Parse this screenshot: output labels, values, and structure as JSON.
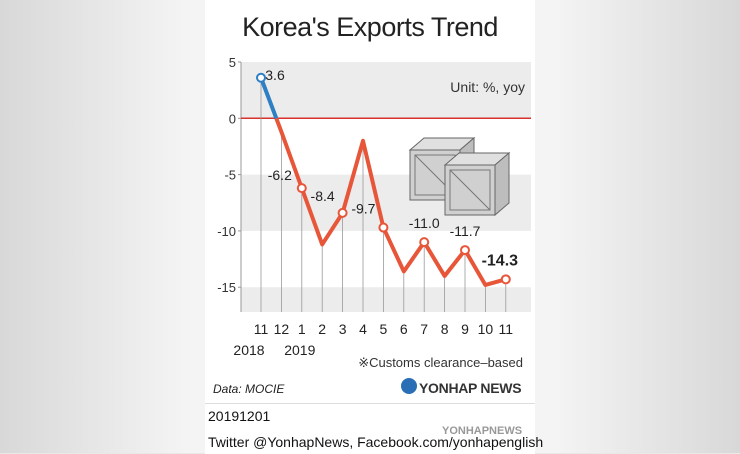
{
  "chart_data": {
    "type": "line",
    "title": "Korea's Exports Trend",
    "unit": "Unit: %, yoy",
    "note": "※Customs clearance–based",
    "categories": [
      "11",
      "12",
      "1",
      "2",
      "3",
      "4",
      "5",
      "6",
      "7",
      "8",
      "9",
      "10",
      "11"
    ],
    "year_labels": [
      {
        "label": "2018",
        "index": 0
      },
      {
        "label": "2019",
        "index": 2
      }
    ],
    "values": [
      3.6,
      -1.2,
      -6.2,
      -11.2,
      -8.4,
      -2.0,
      -9.7,
      -13.6,
      -11.0,
      -14.0,
      -11.7,
      -14.8,
      -14.3
    ],
    "labeled": [
      {
        "index": 0,
        "text": "3.6"
      },
      {
        "index": 2,
        "text": "-6.2"
      },
      {
        "index": 4,
        "text": "-8.4"
      },
      {
        "index": 6,
        "text": "-9.7"
      },
      {
        "index": 8,
        "text": "-11.0"
      },
      {
        "index": 10,
        "text": "-11.7"
      },
      {
        "index": 12,
        "text": "-14.3"
      }
    ],
    "yticks": [
      5,
      0,
      -5,
      -10,
      -15
    ],
    "ylim": [
      -17,
      5
    ],
    "colors": {
      "positive": "#2f7fc4",
      "negative": "#e8563a",
      "zero_line": "#d9312b"
    }
  },
  "source": "Data: MOCIE",
  "brand": "YONHAP NEWS",
  "footer": {
    "date": "20191201",
    "social": "Twitter @YonhapNews,  Facebook.com/yonhapenglish",
    "watermark": "YONHAPNEWS"
  }
}
